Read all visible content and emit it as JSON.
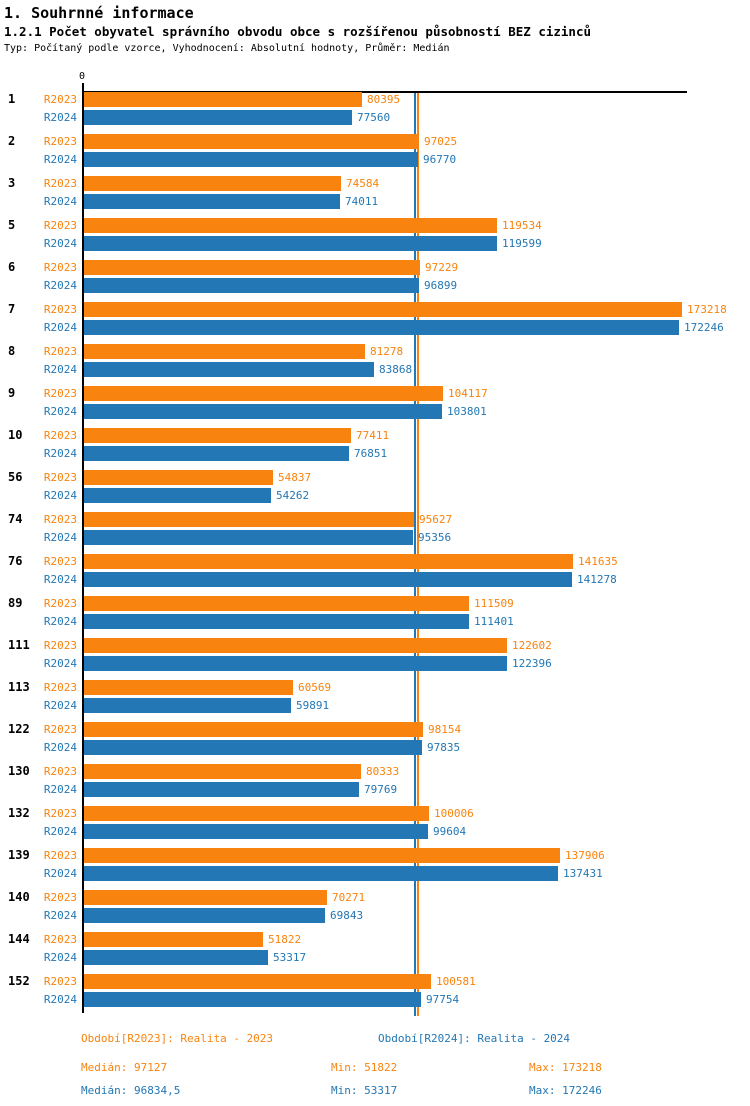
{
  "header": {
    "title": "1. Souhrnné informace",
    "subtitle": "1.2.1 Počet obyvatel správního obvodu obce s rozšířenou působností BEZ cizinců",
    "meta": "Typ: Počítaný podle vzorce, Vyhodnocení: Absolutní hodnoty, Průměr: Medián"
  },
  "colors": {
    "r2023": "#F8830E",
    "r2024": "#2277B4",
    "axis": "#000000"
  },
  "axis": {
    "zero_label": "0"
  },
  "chart_data": {
    "type": "bar",
    "orientation": "horizontal",
    "title": "1.2.1 Počet obyvatel správního obvodu obce s rozšířenou působností BEZ cizinců",
    "categories": [
      "1",
      "2",
      "3",
      "5",
      "6",
      "7",
      "8",
      "9",
      "10",
      "56",
      "74",
      "76",
      "89",
      "111",
      "113",
      "122",
      "130",
      "132",
      "139",
      "140",
      "144",
      "152"
    ],
    "series": [
      {
        "name": "R2023",
        "color": "#F8830E",
        "median": 97127,
        "values": [
          80395,
          97025,
          74584,
          119534,
          97229,
          173218,
          81278,
          104117,
          77411,
          54837,
          95627,
          141635,
          111509,
          122602,
          60569,
          98154,
          80333,
          100006,
          137906,
          70271,
          51822,
          100581
        ]
      },
      {
        "name": "R2024",
        "color": "#2277B4",
        "median": 96834.5,
        "values": [
          77560,
          96770,
          74011,
          119599,
          96899,
          172246,
          83868,
          103801,
          76851,
          54262,
          95356,
          141278,
          111401,
          122396,
          59891,
          97835,
          79769,
          99604,
          137431,
          69843,
          53317,
          97754
        ]
      }
    ],
    "xlim": [
      0,
      175000
    ],
    "value_labels": true,
    "legend_position": "bottom"
  },
  "footer": {
    "legend": [
      {
        "label": "Období[R2023]: Realita - 2023"
      },
      {
        "label": "Období[R2024]: Realita - 2024"
      }
    ],
    "stats": [
      {
        "median": "Medián: 97127",
        "min": "Min: 51822",
        "max": "Max: 173218"
      },
      {
        "median": "Medián: 96834,5",
        "min": "Min: 53317",
        "max": "Max: 172246"
      }
    ]
  }
}
